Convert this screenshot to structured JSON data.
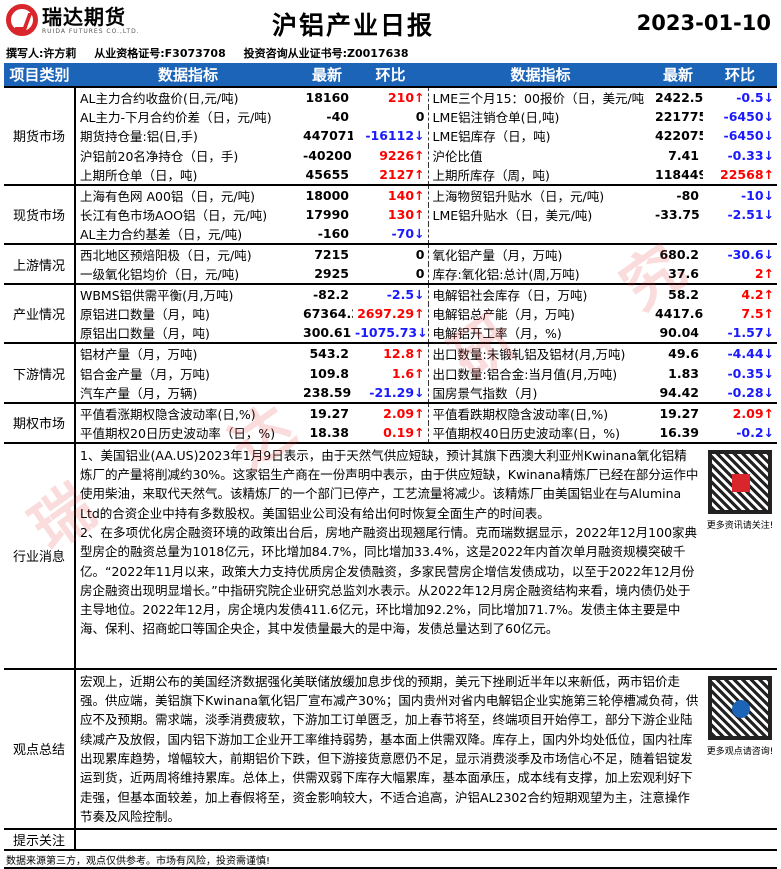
{
  "header": {
    "brand_cn": "瑞达期货",
    "brand_en": "RUIDA FUTURES CO.,LTD.",
    "title": "沪铝产业日报",
    "date": "2023-01-10"
  },
  "authors": {
    "writer": "撰写人:许方莉",
    "qualification": "从业资格证号:F3073708",
    "consult": "投资咨询从业证书号:Z0017638"
  },
  "columns": {
    "category": "项目类别",
    "indicator": "数据指标",
    "latest": "最新",
    "change": "环比"
  },
  "sections": [
    {
      "category": "期货市场",
      "rows": [
        {
          "l": {
            "name": "AL主力合约收盘价(日,元/吨)",
            "latest": "18160",
            "change": "210↑",
            "dir": "up"
          },
          "r": {
            "name": "LME三个月15：00报价（日，美元/吨",
            "latest": "2422.5",
            "change": "-0.5↓",
            "dir": "dn"
          }
        },
        {
          "l": {
            "name": "AL主力-下月合约价差（日，元/吨)",
            "latest": "-40",
            "change": "0",
            "dir": "zero"
          },
          "r": {
            "name": "LME铝注销仓单(日,吨)",
            "latest": "221775",
            "change": "-6450↓",
            "dir": "dn"
          }
        },
        {
          "l": {
            "name": "期货持仓量:铝(日,手)",
            "latest": "447071",
            "change": "-16112↓",
            "dir": "dn"
          },
          "r": {
            "name": "LME铝库存（日，吨)",
            "latest": "422075",
            "change": "-6450↓",
            "dir": "dn"
          }
        },
        {
          "l": {
            "name": "沪铝前20名净持仓（日，手)",
            "latest": "-40200",
            "change": "9226↑",
            "dir": "up"
          },
          "r": {
            "name": "沪伦比值",
            "latest": "7.41",
            "change": "-0.33↓",
            "dir": "dn"
          }
        },
        {
          "l": {
            "name": "上期所仓单（日，吨)",
            "latest": "45655",
            "change": "2127↑",
            "dir": "up"
          },
          "r": {
            "name": "上期所库存（周，吨)",
            "latest": "118449",
            "change": "22568↑",
            "dir": "up"
          }
        }
      ]
    },
    {
      "category": "现货市场",
      "rows": [
        {
          "l": {
            "name": "上海有色网 A00铝（日，元/吨)",
            "latest": "18000",
            "change": "140↑",
            "dir": "up"
          },
          "r": {
            "name": "上海物贸铝升贴水（日，元/吨)",
            "latest": "-80",
            "change": "-10↓",
            "dir": "dn"
          }
        },
        {
          "l": {
            "name": "长江有色市场AOO铝（日，元/吨)",
            "latest": "17990",
            "change": "130↑",
            "dir": "up"
          },
          "r": {
            "name": "LME铝升贴水（日，美元/吨)",
            "latest": "-33.75",
            "change": "-2.51↓",
            "dir": "dn"
          }
        },
        {
          "l": {
            "name": "AL主力合约基差（日，元/吨)",
            "latest": "-160",
            "change": "-70↓",
            "dir": "dn"
          },
          "r": {
            "name": "",
            "latest": "",
            "change": "",
            "dir": "zero"
          }
        }
      ]
    },
    {
      "category": "上游情况",
      "rows": [
        {
          "l": {
            "name": "西北地区预焙阳极（日，元/吨)",
            "latest": "7215",
            "change": "0",
            "dir": "zero"
          },
          "r": {
            "name": "氧化铝产量（月，万吨)",
            "latest": "680.2",
            "change": "-30.6↓",
            "dir": "dn"
          }
        },
        {
          "l": {
            "name": "一级氧化铝均价（日，元/吨)",
            "latest": "2925",
            "change": "0",
            "dir": "zero"
          },
          "r": {
            "name": "库存:氧化铝:总计(周,万吨)",
            "latest": "37.6",
            "change": "2↑",
            "dir": "up"
          }
        }
      ]
    },
    {
      "category": "产业情况",
      "rows": [
        {
          "l": {
            "name": "WBMS铝供需平衡(月,万吨)",
            "latest": "-82.2",
            "change": "-2.5↓",
            "dir": "dn"
          },
          "r": {
            "name": "电解铝社会库存（日，万吨)",
            "latest": "58.2",
            "change": "4.2↑",
            "dir": "up"
          }
        },
        {
          "l": {
            "name": "原铝进口数量（月，吨)",
            "latest": "67364.2",
            "change": "2697.29↑",
            "dir": "up"
          },
          "r": {
            "name": "电解铝总产能（月，万吨)",
            "latest": "4417.6",
            "change": "7.5↑",
            "dir": "up"
          }
        },
        {
          "l": {
            "name": "原铝出口数量（月，吨)",
            "latest": "300.61",
            "change": "-1075.73↓",
            "dir": "dn"
          },
          "r": {
            "name": "电解铝开工率（月，%)",
            "latest": "90.04",
            "change": "-1.57↓",
            "dir": "dn"
          }
        }
      ]
    },
    {
      "category": "下游情况",
      "rows": [
        {
          "l": {
            "name": "铝材产量（月，万吨)",
            "latest": "543.2",
            "change": "12.8↑",
            "dir": "up"
          },
          "r": {
            "name": "出口数量:未锻轧铝及铝材(月,万吨)",
            "latest": "49.6",
            "change": "-4.44↓",
            "dir": "dn"
          }
        },
        {
          "l": {
            "name": "铝合金产量（月，万吨)",
            "latest": "109.8",
            "change": "1.6↑",
            "dir": "up"
          },
          "r": {
            "name": "出口数量:铝合金:当月值(月,万吨)",
            "latest": "1.83",
            "change": "-0.35↓",
            "dir": "dn"
          }
        },
        {
          "l": {
            "name": "汽车产量（月，万辆)",
            "latest": "238.59",
            "change": "-21.29↓",
            "dir": "dn"
          },
          "r": {
            "name": "国房景气指数（月)",
            "latest": "94.42",
            "change": "-0.28↓",
            "dir": "dn"
          }
        }
      ]
    },
    {
      "category": "期权市场",
      "rows": [
        {
          "l": {
            "name": "平值看涨期权隐含波动率(日,%)",
            "latest": "19.27",
            "change": "2.09↑",
            "dir": "up"
          },
          "r": {
            "name": "平值看跌期权隐含波动率(日,%)",
            "latest": "19.27",
            "change": "2.09↑",
            "dir": "up"
          }
        },
        {
          "l": {
            "name": "平值期权20日历史波动率（日，%)",
            "latest": "18.38",
            "change": "0.19↑",
            "dir": "up"
          },
          "r": {
            "name": "平值期权40日历史波动率(日，%)",
            "latest": "16.39",
            "change": "-0.2↓",
            "dir": "dn"
          }
        }
      ]
    }
  ],
  "news": {
    "category": "行业消息",
    "text": "1、美国铝业(AA.US)2023年1月9日表示，由于天然气供应短缺，预计其旗下西澳大利亚州Kwinana氧化铝精炼厂的产量将削减约30%。这家铝生产商在一份声明中表示，由于供应短缺，Kwinana精炼厂已经在部分运作中使用柴油，来取代天然气。该精炼厂的一个部门已停产，工艺流量将减少。该精炼厂由美国铝业在与Alumina Ltd的合资企业中持有多数股权。美国铝业公司没有给出何时恢复全面生产的时间表。\n2、在多项优化房企融资环境的政策出台后，房地产融资出现翘尾行情。克而瑞数据显示，2022年12月100家典型房企的融资总量为1018亿元，环比增加84.7%，同比增加33.4%，这是2022年内首次单月融资规模突破千亿。“2022年11月以来，政策大力支持优质房企发债融资，多家民营房企增信发债成功，以至于2022年12月份房企融资出现明显增长。”中指研究院企业研究总监刘水表示。从2022年12月房企融资结构来看，境内债仍处于主导地位。2022年12月，房企境内发债411.6亿元，环比增加92.2%，同比增加71.7%。发债主体主要是中海、保利、招商蛇口等国企央企，其中发债量最大的是中海，发债总量达到了60亿元。",
    "qr_caption": "更多资讯请关注!"
  },
  "view": {
    "category": "观点总结",
    "text": "宏观上，近期公布的美国经济数据强化美联储放缓加息步伐的预期，美元下挫刷近半年以来新低，两市铝价走强。供应端，美铝旗下Kwinana氧化铝厂宣布减产30%；国内贵州对省内电解铝企业实施第三轮停槽减负荷，供应不及预期。需求端，淡季消费疲软，下游加工订单匮乏，加上春节将至，终端项目开始停工，部分下游企业陆续减产及放假，国内铝下游加工企业开工率维持弱势，基本面上供需双降。库存上，国内外均处低位，国内社库出现累库趋势，增幅较大，前期铝价下跌，但下游接货意愿仍不足，显示消费淡季及市场信心不足，随着铝锭发运到货，近两周将维持累库。总体上，供需双弱下库存大幅累库，基本面承压，成本线有支撑，加上宏观利好下走强，但基本面较差，加上春假将至，资金影响较大，不适合追高，沪铝AL2302合约短期观望为主，注意操作节奏及风险控制。",
    "qr_caption": "更多观点请咨询!"
  },
  "notice": {
    "category": "提示关注",
    "text": ""
  },
  "footer": "数据来源第三方，观点仅供参考。市场有风险，投资需谨慎!",
  "watermark": "瑞达研究",
  "colors": {
    "header_blue": "#1c64b7",
    "up": "#ff0000",
    "down": "#1a1aff",
    "brand_red": "#d9262c"
  }
}
